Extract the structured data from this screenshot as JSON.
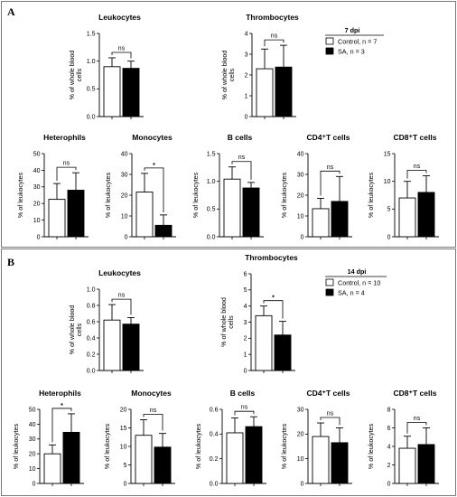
{
  "panels": [
    {
      "label": "A",
      "legend": {
        "title": "7 dpi",
        "control": "Control, n = 7",
        "sa": "SA, n = 3"
      }
    },
    {
      "label": "B",
      "legend": {
        "title": "14 dpi",
        "control": "Control, n = 10",
        "sa": "SA, n = 4"
      }
    }
  ],
  "colors": {
    "control": "#ffffff",
    "sa": "#000000",
    "stroke": "#000000"
  },
  "chart_data": [
    {
      "panel": "A",
      "type": "bar",
      "title": "Leukocytes",
      "ylabel": "% of whole blood cells",
      "ylim": [
        0,
        1.5
      ],
      "yticks": [
        "0.0",
        "0.5",
        "1.0",
        "1.5"
      ],
      "categories": [
        "Control",
        "SA"
      ],
      "values": [
        0.9,
        0.87
      ],
      "errors": [
        0.16,
        0.13
      ],
      "significance": "ns"
    },
    {
      "panel": "A",
      "type": "bar",
      "title": "Thrombocytes",
      "ylabel": "% of whole blood cells",
      "ylim": [
        0,
        4
      ],
      "yticks": [
        "0",
        "1",
        "2",
        "3",
        "4"
      ],
      "categories": [
        "Control",
        "SA"
      ],
      "values": [
        2.3,
        2.38
      ],
      "errors": [
        0.95,
        1.05
      ],
      "significance": "ns"
    },
    {
      "panel": "A",
      "type": "bar",
      "title": "Heterophils",
      "ylabel": "% of leukocytes",
      "ylim": [
        0,
        50
      ],
      "yticks": [
        "0",
        "10",
        "20",
        "30",
        "40",
        "50"
      ],
      "categories": [
        "Control",
        "SA"
      ],
      "values": [
        22.5,
        28
      ],
      "errors": [
        9.5,
        10.5
      ],
      "significance": "ns"
    },
    {
      "panel": "A",
      "type": "bar",
      "title": "Monocytes",
      "ylabel": "% of leukocytes",
      "ylim": [
        0,
        40
      ],
      "yticks": [
        "0",
        "10",
        "20",
        "30",
        "40"
      ],
      "categories": [
        "Control",
        "SA"
      ],
      "values": [
        21.5,
        5.5
      ],
      "errors": [
        9,
        5
      ],
      "significance": "*"
    },
    {
      "panel": "A",
      "type": "bar",
      "title": "B cells",
      "ylabel": "% of leukocytes",
      "ylim": [
        0,
        1.5
      ],
      "yticks": [
        "0.0",
        "0.5",
        "1.0",
        "1.5"
      ],
      "categories": [
        "Control",
        "SA"
      ],
      "values": [
        1.04,
        0.88
      ],
      "errors": [
        0.22,
        0.1
      ],
      "significance": "ns"
    },
    {
      "panel": "A",
      "type": "bar",
      "title": "CD4⁺T cells",
      "ylabel": "% of leukocytes",
      "ylim": [
        0,
        40
      ],
      "yticks": [
        "0",
        "10",
        "20",
        "30",
        "40"
      ],
      "categories": [
        "Control",
        "SA"
      ],
      "values": [
        13.5,
        17
      ],
      "errors": [
        5,
        12
      ],
      "significance": "ns"
    },
    {
      "panel": "A",
      "type": "bar",
      "title": "CD8⁺T cells",
      "ylabel": "% of leukocytes",
      "ylim": [
        0,
        15
      ],
      "yticks": [
        "0",
        "5",
        "10",
        "15"
      ],
      "categories": [
        "Control",
        "SA"
      ],
      "values": [
        7,
        8
      ],
      "errors": [
        3,
        3
      ],
      "significance": "ns"
    },
    {
      "panel": "B",
      "type": "bar",
      "title": "Leukocytes",
      "ylabel": "% of whole blood cells",
      "ylim": [
        0,
        1.0
      ],
      "yticks": [
        "0.0",
        "0.2",
        "0.4",
        "0.6",
        "0.8",
        "1.0"
      ],
      "categories": [
        "Control",
        "SA"
      ],
      "values": [
        0.62,
        0.57
      ],
      "errors": [
        0.19,
        0.08
      ],
      "significance": "ns"
    },
    {
      "panel": "B",
      "type": "bar",
      "title": "Thrombocytes",
      "ylabel": "% of whole blood cells",
      "ylim": [
        0,
        6
      ],
      "yticks": [
        "0",
        "1",
        "2",
        "3",
        "4",
        "5",
        "6"
      ],
      "categories": [
        "Control",
        "SA"
      ],
      "values": [
        3.4,
        2.2
      ],
      "errors": [
        0.6,
        0.85
      ],
      "significance": "*"
    },
    {
      "panel": "B",
      "type": "bar",
      "title": "Heterophils",
      "ylabel": "% of leukocytes",
      "ylim": [
        0,
        50
      ],
      "yticks": [
        "0",
        "10",
        "20",
        "30",
        "40",
        "50"
      ],
      "categories": [
        "Control",
        "SA"
      ],
      "values": [
        20,
        34.5
      ],
      "errors": [
        6,
        12.5
      ],
      "significance": "*"
    },
    {
      "panel": "B",
      "type": "bar",
      "title": "Monocytes",
      "ylabel": "% of leukocytes",
      "ylim": [
        0,
        20
      ],
      "yticks": [
        "0",
        "5",
        "10",
        "15",
        "20"
      ],
      "categories": [
        "Control",
        "SA"
      ],
      "values": [
        13,
        9.8
      ],
      "errors": [
        4.2,
        3.7
      ],
      "significance": "ns"
    },
    {
      "panel": "B",
      "type": "bar",
      "title": "B cells",
      "ylabel": "% of leukocytes",
      "ylim": [
        0,
        0.6
      ],
      "yticks": [
        "0.0",
        "0.2",
        "0.4",
        "0.6"
      ],
      "categories": [
        "Control",
        "SA"
      ],
      "values": [
        0.41,
        0.46
      ],
      "errors": [
        0.12,
        0.08
      ],
      "significance": "ns"
    },
    {
      "panel": "B",
      "type": "bar",
      "title": "CD4⁺T cells",
      "ylabel": "% of leukocytes",
      "ylim": [
        0,
        30
      ],
      "yticks": [
        "0",
        "10",
        "20",
        "30"
      ],
      "categories": [
        "Control",
        "SA"
      ],
      "values": [
        19,
        16.5
      ],
      "errors": [
        5.5,
        6
      ],
      "significance": "ns"
    },
    {
      "panel": "B",
      "type": "bar",
      "title": "CD8⁺T cells",
      "ylabel": "% of leukocytes",
      "ylim": [
        0,
        8
      ],
      "yticks": [
        "0",
        "2",
        "4",
        "6",
        "8"
      ],
      "categories": [
        "Control",
        "SA"
      ],
      "values": [
        3.8,
        4.2
      ],
      "errors": [
        1.3,
        1.8
      ],
      "significance": "ns"
    }
  ]
}
